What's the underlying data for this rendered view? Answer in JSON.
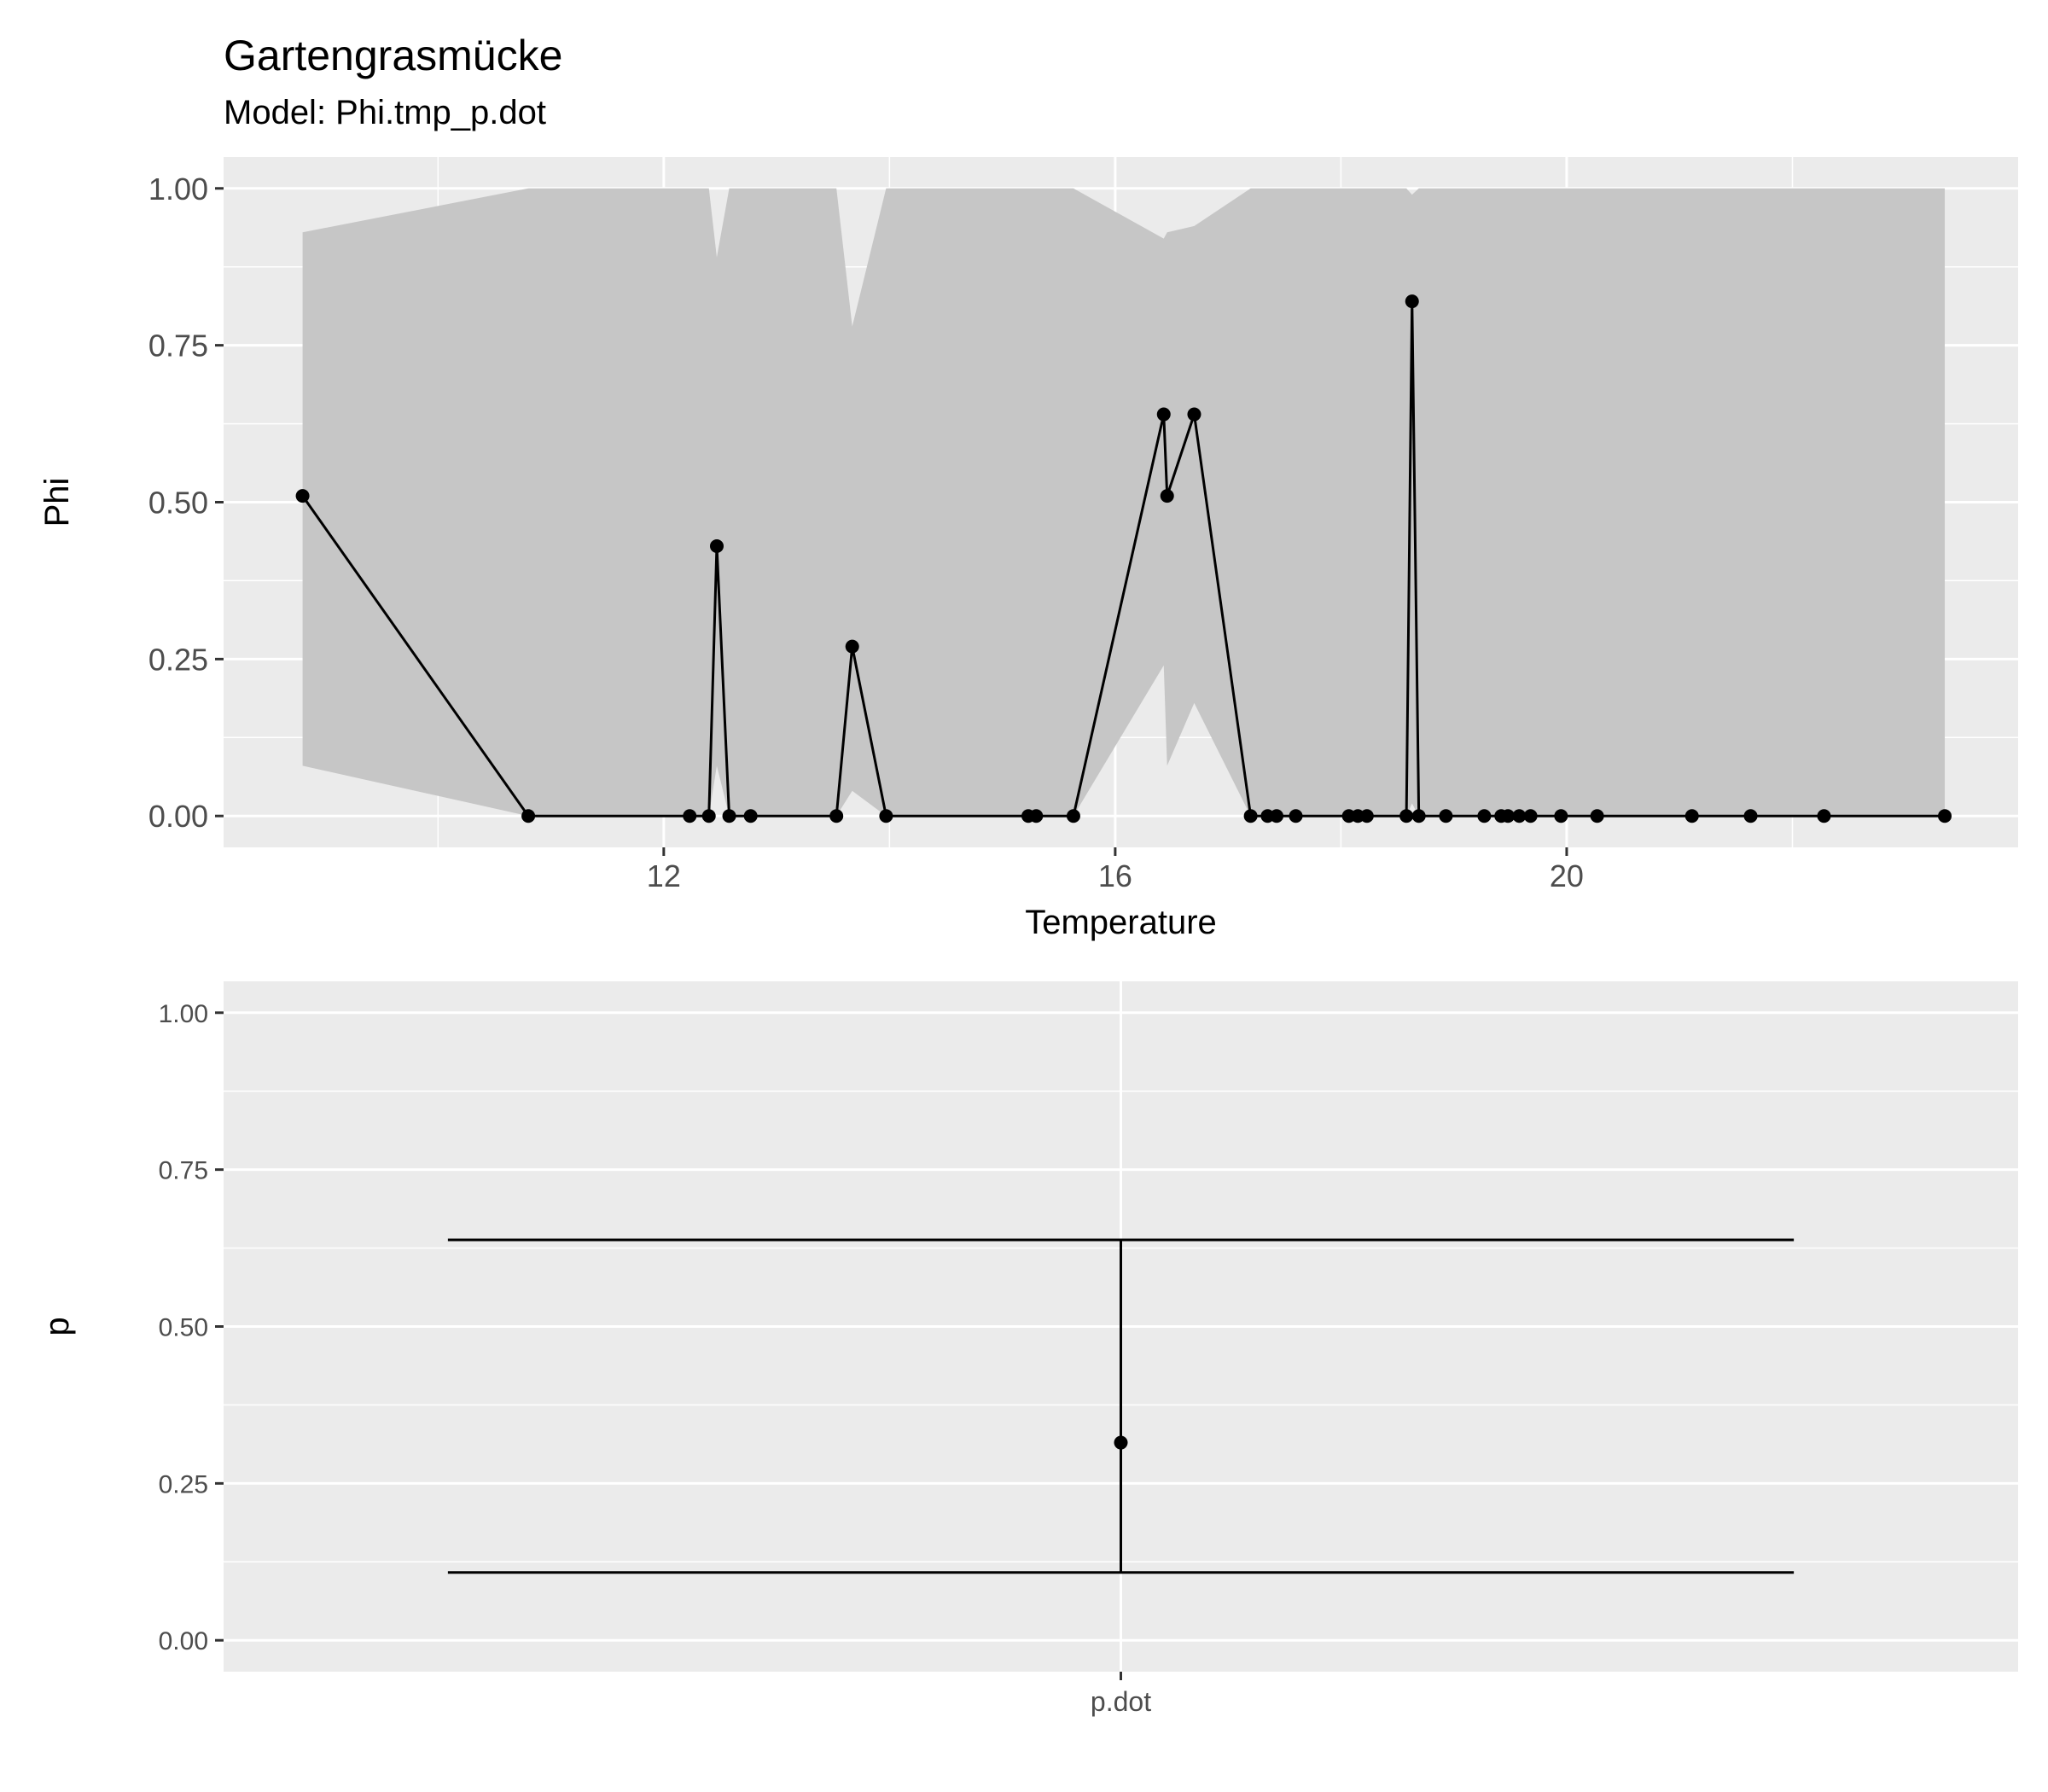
{
  "header": {
    "title": "Gartengrasmücke",
    "subtitle": "Model: Phi.tmp_p.dot"
  },
  "colors": {
    "panel_background": "#ebebeb",
    "gridline": "#ffffff",
    "ribbon": "#c6c6c6",
    "line": "#000000",
    "axis_text": "#4d4d4d"
  },
  "chart_data": [
    {
      "type": "line",
      "xlabel": "Temperature",
      "ylabel": "Phi",
      "xlim": [
        8.1,
        24.0
      ],
      "ylim": [
        -0.05,
        1.05
      ],
      "x_ticks": [
        {
          "value": 12,
          "label": "12"
        },
        {
          "value": 16,
          "label": "16"
        },
        {
          "value": 20,
          "label": "20"
        }
      ],
      "y_ticks": [
        {
          "value": 0,
          "label": "0.00"
        },
        {
          "value": 0.25,
          "label": "0.25"
        },
        {
          "value": 0.5,
          "label": "0.50"
        },
        {
          "value": 0.75,
          "label": "0.75"
        },
        {
          "value": 1,
          "label": "1.00"
        }
      ],
      "grid": true,
      "x": [
        8.8,
        10.8,
        12.23,
        12.4,
        12.47,
        12.58,
        12.77,
        13.53,
        13.67,
        13.97,
        15.23,
        15.3,
        15.63,
        16.43,
        16.46,
        16.7,
        17.2,
        17.35,
        17.43,
        17.6,
        18.07,
        18.15,
        18.23,
        18.58,
        18.63,
        18.69,
        18.93,
        19.27,
        19.42,
        19.48,
        19.58,
        19.68,
        19.95,
        20.27,
        21.11,
        21.63,
        22.28,
        23.35
      ],
      "y": [
        0.51,
        0.0,
        0.0,
        0.0,
        0.43,
        0.0,
        0.0,
        0.0,
        0.27,
        0.0,
        0.0,
        0.0,
        0.0,
        0.64,
        0.51,
        0.64,
        0.0,
        0.0,
        0.0,
        0.0,
        0.0,
        0.0,
        0.0,
        0.0,
        0.82,
        0.0,
        0.0,
        0.0,
        0.0,
        0.0,
        0.0,
        0.0,
        0.0,
        0.0,
        0.0,
        0.0,
        0.0,
        0.0
      ],
      "ribbon_upper": [
        0.93,
        1.0,
        1.0,
        1.0,
        0.89,
        1.0,
        1.0,
        1.0,
        0.78,
        1.0,
        1.0,
        1.0,
        1.0,
        0.92,
        0.93,
        0.94,
        1.0,
        1.0,
        1.0,
        1.0,
        1.0,
        1.0,
        1.0,
        1.0,
        0.99,
        1.0,
        1.0,
        1.0,
        1.0,
        1.0,
        1.0,
        1.0,
        1.0,
        1.0,
        1.0,
        1.0,
        1.0,
        1.0
      ],
      "ribbon_lower": [
        0.08,
        0.0,
        0.0,
        0.0,
        0.08,
        0.0,
        0.0,
        0.0,
        0.04,
        0.0,
        0.0,
        0.0,
        0.0,
        0.24,
        0.08,
        0.18,
        0.0,
        0.0,
        0.0,
        0.0,
        0.0,
        0.0,
        0.0,
        0.0,
        0.02,
        0.0,
        0.0,
        0.0,
        0.0,
        0.0,
        0.0,
        0.0,
        0.0,
        0.0,
        0.0,
        0.0,
        0.0,
        0.0
      ]
    },
    {
      "type": "errorbar",
      "xlabel": "",
      "ylabel": "p",
      "ylim": [
        -0.05,
        1.05
      ],
      "categories": [
        "p.dot"
      ],
      "y_ticks": [
        {
          "value": 0,
          "label": "0.00"
        },
        {
          "value": 0.25,
          "label": "0.25"
        },
        {
          "value": 0.5,
          "label": "0.50"
        },
        {
          "value": 0.75,
          "label": "0.75"
        },
        {
          "value": 1,
          "label": "1.00"
        }
      ],
      "grid": true,
      "estimate": [
        0.315
      ],
      "lower": [
        0.108
      ],
      "upper": [
        0.638
      ]
    }
  ]
}
